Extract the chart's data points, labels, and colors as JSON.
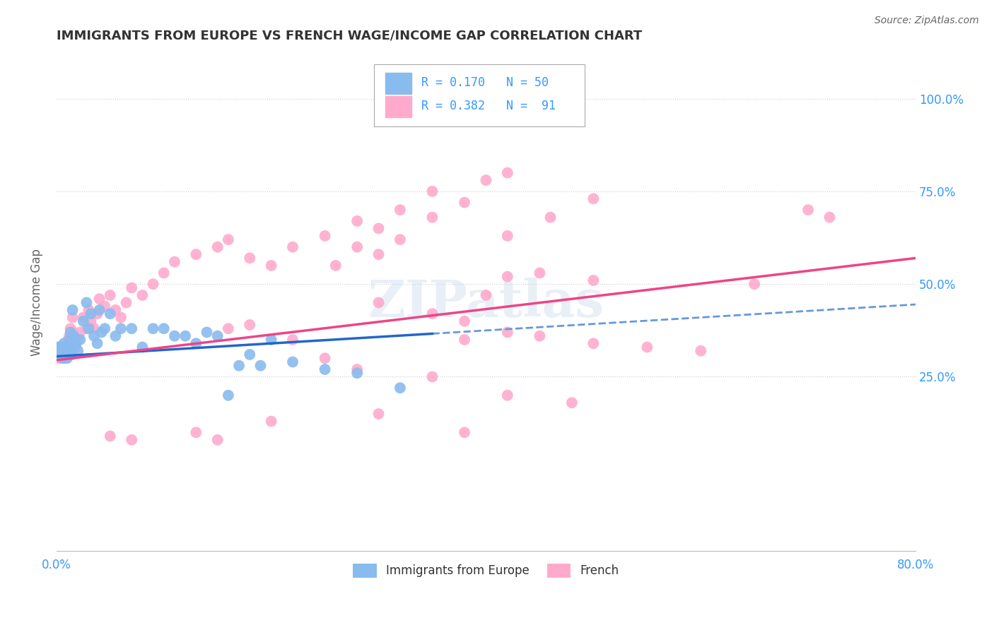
{
  "title": "IMMIGRANTS FROM EUROPE VS FRENCH WAGE/INCOME GAP CORRELATION CHART",
  "source": "Source: ZipAtlas.com",
  "ylabel": "Wage/Income Gap",
  "legend_bottom": [
    "Immigrants from Europe",
    "French"
  ],
  "scatter_blue_color": "#88bbee",
  "scatter_pink_color": "#ffaacc",
  "trend_blue_solid_color": "#2266cc",
  "trend_blue_dash_color": "#6699dd",
  "trend_pink_color": "#ee4488",
  "watermark": "ZIPatlas",
  "background_color": "#ffffff",
  "grid_color": "#cccccc",
  "title_color": "#333333",
  "axis_label_color": "#3399ff",
  "xlim": [
    0.0,
    0.8
  ],
  "ylim": [
    -0.22,
    1.12
  ],
  "blue_trend_start_x": 0.0,
  "blue_trend_end_x": 0.8,
  "blue_trend_solid_end_x": 0.35,
  "blue_trend_y0": 0.305,
  "blue_trend_y_at_solid_end": 0.385,
  "blue_trend_y_at_end": 0.445,
  "pink_trend_y0": 0.295,
  "pink_trend_y_at_end": 0.57,
  "blue_scatter_x": [
    0.001,
    0.002,
    0.003,
    0.004,
    0.005,
    0.006,
    0.007,
    0.008,
    0.009,
    0.01,
    0.011,
    0.012,
    0.013,
    0.014,
    0.015,
    0.016,
    0.017,
    0.018,
    0.02,
    0.022,
    0.025,
    0.028,
    0.03,
    0.032,
    0.035,
    0.038,
    0.04,
    0.042,
    0.045,
    0.05,
    0.055,
    0.06,
    0.07,
    0.08,
    0.09,
    0.1,
    0.11,
    0.12,
    0.13,
    0.14,
    0.15,
    0.16,
    0.17,
    0.18,
    0.19,
    0.2,
    0.22,
    0.25,
    0.28,
    0.32
  ],
  "blue_scatter_y": [
    0.33,
    0.32,
    0.31,
    0.33,
    0.32,
    0.3,
    0.34,
    0.31,
    0.32,
    0.3,
    0.33,
    0.35,
    0.37,
    0.31,
    0.43,
    0.36,
    0.33,
    0.34,
    0.32,
    0.35,
    0.4,
    0.45,
    0.38,
    0.42,
    0.36,
    0.34,
    0.43,
    0.37,
    0.38,
    0.42,
    0.36,
    0.38,
    0.38,
    0.33,
    0.38,
    0.38,
    0.36,
    0.36,
    0.34,
    0.37,
    0.36,
    0.2,
    0.28,
    0.31,
    0.28,
    0.35,
    0.29,
    0.27,
    0.26,
    0.22
  ],
  "pink_scatter_x": [
    0.001,
    0.002,
    0.003,
    0.004,
    0.005,
    0.006,
    0.007,
    0.008,
    0.009,
    0.01,
    0.011,
    0.012,
    0.013,
    0.014,
    0.015,
    0.016,
    0.018,
    0.02,
    0.022,
    0.025,
    0.028,
    0.03,
    0.032,
    0.035,
    0.038,
    0.04,
    0.045,
    0.05,
    0.055,
    0.06,
    0.065,
    0.07,
    0.08,
    0.09,
    0.1,
    0.11,
    0.13,
    0.15,
    0.16,
    0.18,
    0.2,
    0.22,
    0.25,
    0.28,
    0.3,
    0.32,
    0.35,
    0.38,
    0.3,
    0.35,
    0.38,
    0.4,
    0.42,
    0.45,
    0.5,
    0.38,
    0.42,
    0.45,
    0.5,
    0.55,
    0.6,
    0.65,
    0.7,
    0.72,
    0.4,
    0.42,
    0.26,
    0.28,
    0.3,
    0.32,
    0.35,
    0.42,
    0.46,
    0.5,
    0.28,
    0.35,
    0.42,
    0.48,
    0.3,
    0.2,
    0.38,
    0.15,
    0.13,
    0.16,
    0.18,
    0.22,
    0.25,
    0.05,
    0.07
  ],
  "pink_scatter_y": [
    0.31,
    0.3,
    0.32,
    0.3,
    0.33,
    0.31,
    0.32,
    0.3,
    0.31,
    0.33,
    0.35,
    0.36,
    0.38,
    0.31,
    0.41,
    0.37,
    0.33,
    0.35,
    0.37,
    0.41,
    0.38,
    0.43,
    0.4,
    0.38,
    0.42,
    0.46,
    0.44,
    0.47,
    0.43,
    0.41,
    0.45,
    0.49,
    0.47,
    0.5,
    0.53,
    0.56,
    0.58,
    0.6,
    0.62,
    0.57,
    0.55,
    0.6,
    0.63,
    0.67,
    0.58,
    0.62,
    0.68,
    0.72,
    0.45,
    0.42,
    0.4,
    0.47,
    0.52,
    0.53,
    0.51,
    0.35,
    0.37,
    0.36,
    0.34,
    0.33,
    0.32,
    0.5,
    0.7,
    0.68,
    0.78,
    0.8,
    0.55,
    0.6,
    0.65,
    0.7,
    0.75,
    0.63,
    0.68,
    0.73,
    0.27,
    0.25,
    0.2,
    0.18,
    0.15,
    0.13,
    0.1,
    0.08,
    0.1,
    0.38,
    0.39,
    0.35,
    0.3,
    0.09,
    0.08
  ]
}
